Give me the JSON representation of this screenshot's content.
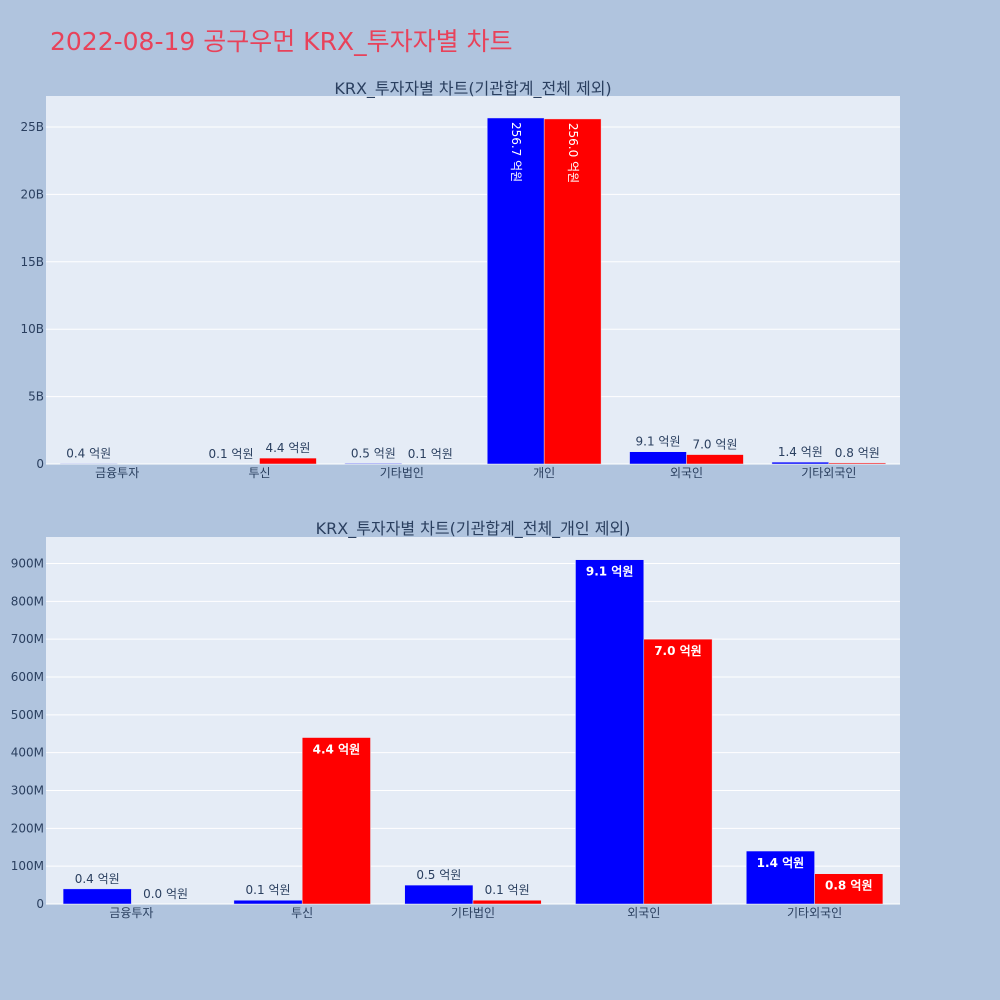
{
  "page": {
    "title": "2022-08-19 공구우먼 KRX_투자자별 차트"
  },
  "colors": {
    "series1": "#0000ff",
    "series2": "#ff0000",
    "plot_bg": "#e5ecf6",
    "page_bg": "#b0c4de",
    "title": "#e8425a",
    "text": "#2a3f5f"
  },
  "chart_data": [
    {
      "type": "bar",
      "title": "KRX_투자자별 차트(기관합계_전체 제외)",
      "categories": [
        "금융투자",
        "투신",
        "기타법인",
        "개인",
        "외국인",
        "기타외국인"
      ],
      "series": [
        {
          "values": [
            40000000,
            10000000,
            50000000,
            25670000000,
            910000000,
            140000000
          ],
          "labels": [
            "0.4 억원",
            "0.1 억원",
            "0.5 억원",
            "256.7 억원",
            "9.1 억원",
            "1.4 억원"
          ]
        },
        {
          "values": [
            0,
            440000000,
            10000000,
            25600000000,
            700000000,
            80000000
          ],
          "labels": [
            "",
            "4.4 억원",
            "0.1 억원",
            "256.0 억원",
            "7.0 억원",
            "0.8 억원"
          ]
        }
      ],
      "ylim": [
        0,
        27300000000
      ],
      "yticks": [
        0,
        5000000000,
        10000000000,
        15000000000,
        20000000000,
        25000000000
      ],
      "ytick_labels": [
        "0",
        "5B",
        "10B",
        "15B",
        "20B",
        "25B"
      ],
      "grid": true,
      "xlabel": "",
      "ylabel": ""
    },
    {
      "type": "bar",
      "title": "KRX_투자자별 차트(기관합계_전체_개인 제외)",
      "categories": [
        "금융투자",
        "투신",
        "기타법인",
        "외국인",
        "기타외국인"
      ],
      "series": [
        {
          "values": [
            40000000,
            10000000,
            50000000,
            910000000,
            140000000
          ],
          "labels": [
            "0.4 억원",
            "0.1 억원",
            "0.5 억원",
            "9.1 억원",
            "1.4 억원"
          ]
        },
        {
          "values": [
            0,
            440000000,
            10000000,
            700000000,
            80000000
          ],
          "labels": [
            "0.0 억원",
            "4.4 억원",
            "0.1 억원",
            "7.0 억원",
            "0.8 억원"
          ]
        }
      ],
      "ylim": [
        0,
        970000000
      ],
      "yticks": [
        0,
        100000000,
        200000000,
        300000000,
        400000000,
        500000000,
        600000000,
        700000000,
        800000000,
        900000000
      ],
      "ytick_labels": [
        "0",
        "100M",
        "200M",
        "300M",
        "400M",
        "500M",
        "600M",
        "700M",
        "800M",
        "900M"
      ],
      "grid": true,
      "xlabel": "",
      "ylabel": ""
    }
  ]
}
